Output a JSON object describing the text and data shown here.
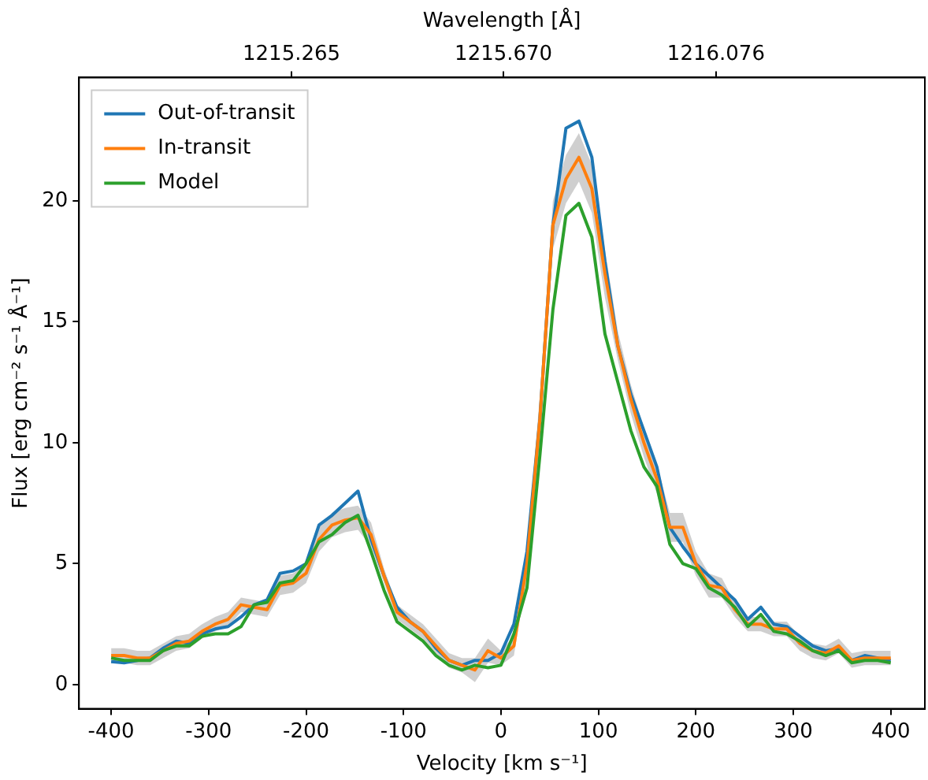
{
  "chart_data": {
    "type": "line",
    "xlabel": "Velocity [km s⁻¹]",
    "ylabel": "Flux [erg cm⁻² s⁻¹ Å⁻¹]",
    "x2label": "Wavelength [Å]",
    "x": [
      -400,
      -386.7,
      -373.3,
      -360,
      -346.7,
      -333.3,
      -320,
      -306.7,
      -293.3,
      -280,
      -266.7,
      -253.3,
      -240,
      -226.7,
      -213.3,
      -200,
      -186.7,
      -173.3,
      -160,
      -146.7,
      -133.3,
      -120,
      -106.7,
      -93.3,
      -80,
      -66.7,
      -53.3,
      -40,
      -26.7,
      -13.3,
      0,
      13.3,
      26.7,
      40,
      53.3,
      66.7,
      80,
      93.3,
      106.7,
      120,
      133.3,
      146.7,
      160,
      173.3,
      186.7,
      200,
      213.3,
      226.7,
      240,
      253.3,
      266.7,
      280,
      293.3,
      306.7,
      320,
      333.3,
      346.7,
      360,
      373.3,
      386.7,
      400
    ],
    "series": [
      {
        "name": "Out-of-transit",
        "color": "#1f77b4",
        "values": [
          0.95,
          0.9,
          1.0,
          1.1,
          1.5,
          1.8,
          1.7,
          2.1,
          2.3,
          2.4,
          2.8,
          3.3,
          3.5,
          4.6,
          4.7,
          5.0,
          6.6,
          7.0,
          7.5,
          8.0,
          6.0,
          4.5,
          3.2,
          2.6,
          2.2,
          1.5,
          1.0,
          0.8,
          1.0,
          1.0,
          1.3,
          2.5,
          5.5,
          11,
          19,
          23.0,
          23.3,
          21.8,
          17.5,
          14,
          12,
          10.5,
          9.0,
          6.5,
          5.7,
          5.0,
          4.5,
          4.0,
          3.5,
          2.7,
          3.2,
          2.5,
          2.4,
          2.0,
          1.6,
          1.4,
          1.5,
          1.0,
          1.2,
          1.1,
          1.0
        ]
      },
      {
        "name": "In-transit",
        "color": "#ff7f0e",
        "values": [
          1.2,
          1.2,
          1.1,
          1.1,
          1.4,
          1.7,
          1.8,
          2.2,
          2.5,
          2.7,
          3.3,
          3.2,
          3.1,
          4.1,
          4.2,
          4.6,
          6.0,
          6.6,
          6.8,
          6.9,
          6.2,
          4.5,
          3.0,
          2.6,
          2.2,
          1.6,
          1.0,
          0.8,
          0.6,
          1.4,
          1.1,
          1.6,
          5.0,
          11,
          19,
          20.9,
          21.8,
          20.5,
          17,
          14,
          11.8,
          10,
          8.5,
          6.5,
          6.5,
          5.0,
          4.1,
          4.0,
          3.1,
          2.5,
          2.5,
          2.3,
          2.3,
          1.7,
          1.4,
          1.3,
          1.6,
          1.0,
          1.1,
          1.1,
          1.1
        ],
        "lower": [
          0.9,
          0.9,
          0.8,
          0.8,
          1.1,
          1.4,
          1.5,
          1.9,
          2.2,
          2.4,
          3.0,
          2.9,
          2.8,
          3.7,
          3.8,
          4.2,
          5.5,
          6.1,
          6.3,
          6.4,
          5.7,
          4.2,
          2.7,
          2.3,
          1.9,
          1.3,
          0.7,
          0.5,
          0.1,
          0.9,
          0.8,
          1.2,
          4.5,
          10,
          18,
          19.9,
          20.8,
          19.5,
          16,
          13.4,
          11.2,
          9.4,
          7.9,
          5.9,
          5.9,
          4.5,
          3.6,
          3.6,
          2.8,
          2.2,
          2.2,
          2.0,
          2.0,
          1.4,
          1.1,
          1.0,
          1.3,
          0.7,
          0.8,
          0.8,
          0.8
        ],
        "upper": [
          1.5,
          1.5,
          1.4,
          1.4,
          1.7,
          2.0,
          2.1,
          2.5,
          2.8,
          3.0,
          3.6,
          3.5,
          3.4,
          4.5,
          4.6,
          5.0,
          6.5,
          7.1,
          7.3,
          7.4,
          6.7,
          4.8,
          3.3,
          2.9,
          2.5,
          1.9,
          1.3,
          1.1,
          1.1,
          1.9,
          1.4,
          2.0,
          5.5,
          12,
          20,
          21.9,
          22.8,
          21.5,
          18,
          14.6,
          12.4,
          10.6,
          9.1,
          7.1,
          7.1,
          5.5,
          4.6,
          4.4,
          3.4,
          2.8,
          2.8,
          2.6,
          2.6,
          2.0,
          1.7,
          1.6,
          1.9,
          1.3,
          1.4,
          1.4,
          1.4
        ]
      },
      {
        "name": "Model",
        "color": "#2ca02c",
        "values": [
          1.1,
          1.0,
          1.0,
          1.0,
          1.4,
          1.6,
          1.6,
          2.0,
          2.1,
          2.1,
          2.4,
          3.3,
          3.4,
          4.2,
          4.3,
          5.0,
          5.9,
          6.2,
          6.7,
          7.0,
          5.5,
          3.9,
          2.6,
          2.2,
          1.8,
          1.2,
          0.8,
          0.6,
          0.8,
          0.7,
          0.8,
          2.1,
          4.0,
          9.5,
          15.5,
          19.4,
          19.9,
          18.5,
          14.5,
          12.5,
          10.5,
          9,
          8.2,
          5.8,
          5.0,
          4.8,
          4.0,
          3.7,
          3.2,
          2.4,
          2.9,
          2.2,
          2.1,
          1.8,
          1.4,
          1.2,
          1.4,
          0.9,
          1.0,
          1.0,
          0.9
        ]
      }
    ],
    "xlim": [
      -433,
      435
    ],
    "xticks": [
      -400,
      -300,
      -200,
      -100,
      0,
      100,
      200,
      300,
      400
    ],
    "ylim": [
      -1.0,
      25.1
    ],
    "yticks": [
      0,
      5,
      10,
      15,
      20
    ],
    "x2lim": [
      1214.859,
      1216.475
    ],
    "x2ticks": [
      {
        "value": 1215.265,
        "label": "1215.265"
      },
      {
        "value": 1215.67,
        "label": "1215.670"
      },
      {
        "value": 1216.076,
        "label": "1216.076"
      }
    ],
    "legend": "top left",
    "grid": false
  }
}
